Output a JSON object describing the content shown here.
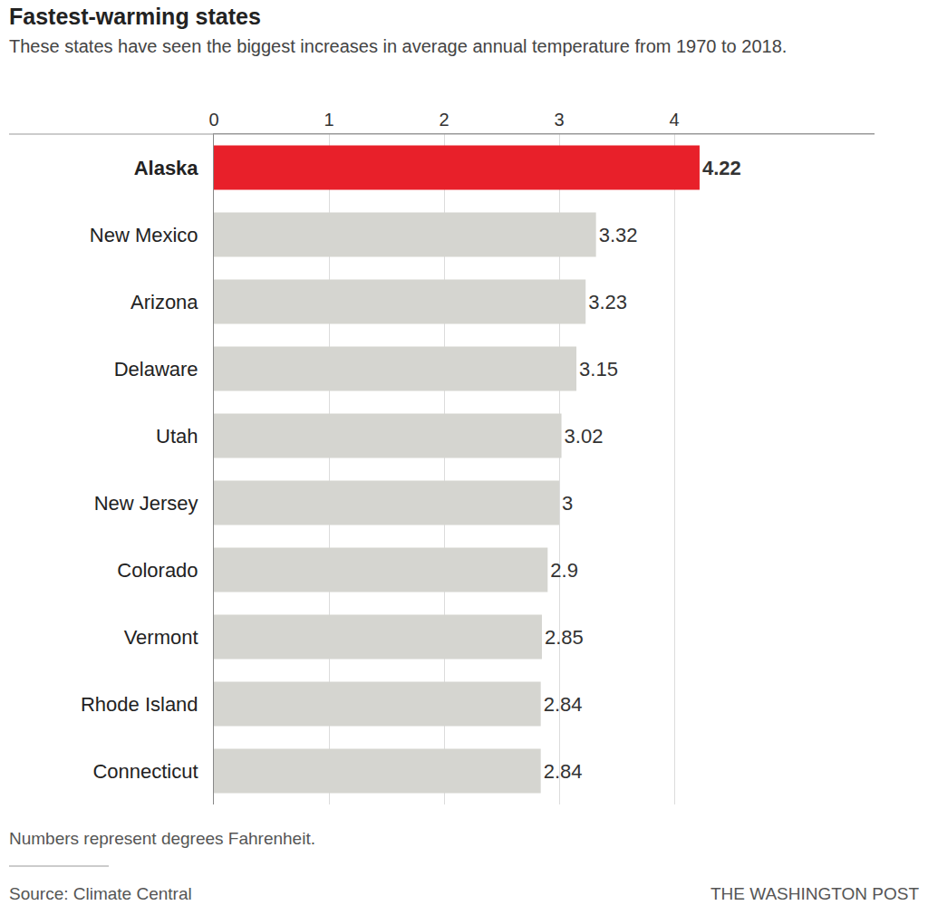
{
  "chart_data": {
    "type": "bar",
    "orientation": "horizontal",
    "title": "Fastest-warming states",
    "subtitle": "These states have seen the biggest increases in average annual temperature from 1970 to 2018.",
    "categories": [
      "Alaska",
      "New Mexico",
      "Arizona",
      "Delaware",
      "Utah",
      "New Jersey",
      "Colorado",
      "Vermont",
      "Rhode Island",
      "Connecticut"
    ],
    "values": [
      4.22,
      3.32,
      3.23,
      3.15,
      3.02,
      3,
      2.9,
      2.85,
      2.84,
      2.84
    ],
    "colors": [
      "#e8202a",
      "#d5d5d0",
      "#d5d5d0",
      "#d5d5d0",
      "#d5d5d0",
      "#d5d5d0",
      "#d5d5d0",
      "#d5d5d0",
      "#d5d5d0",
      "#d5d5d0"
    ],
    "xlim": [
      0,
      5.74
    ],
    "xticks": [
      0,
      1,
      2,
      3,
      4
    ],
    "grid": true,
    "data_labels": true,
    "annotations": [
      "Numbers represent degrees Fahrenheit.",
      "Source: Climate Central",
      "THE WASHINGTON POST"
    ]
  }
}
